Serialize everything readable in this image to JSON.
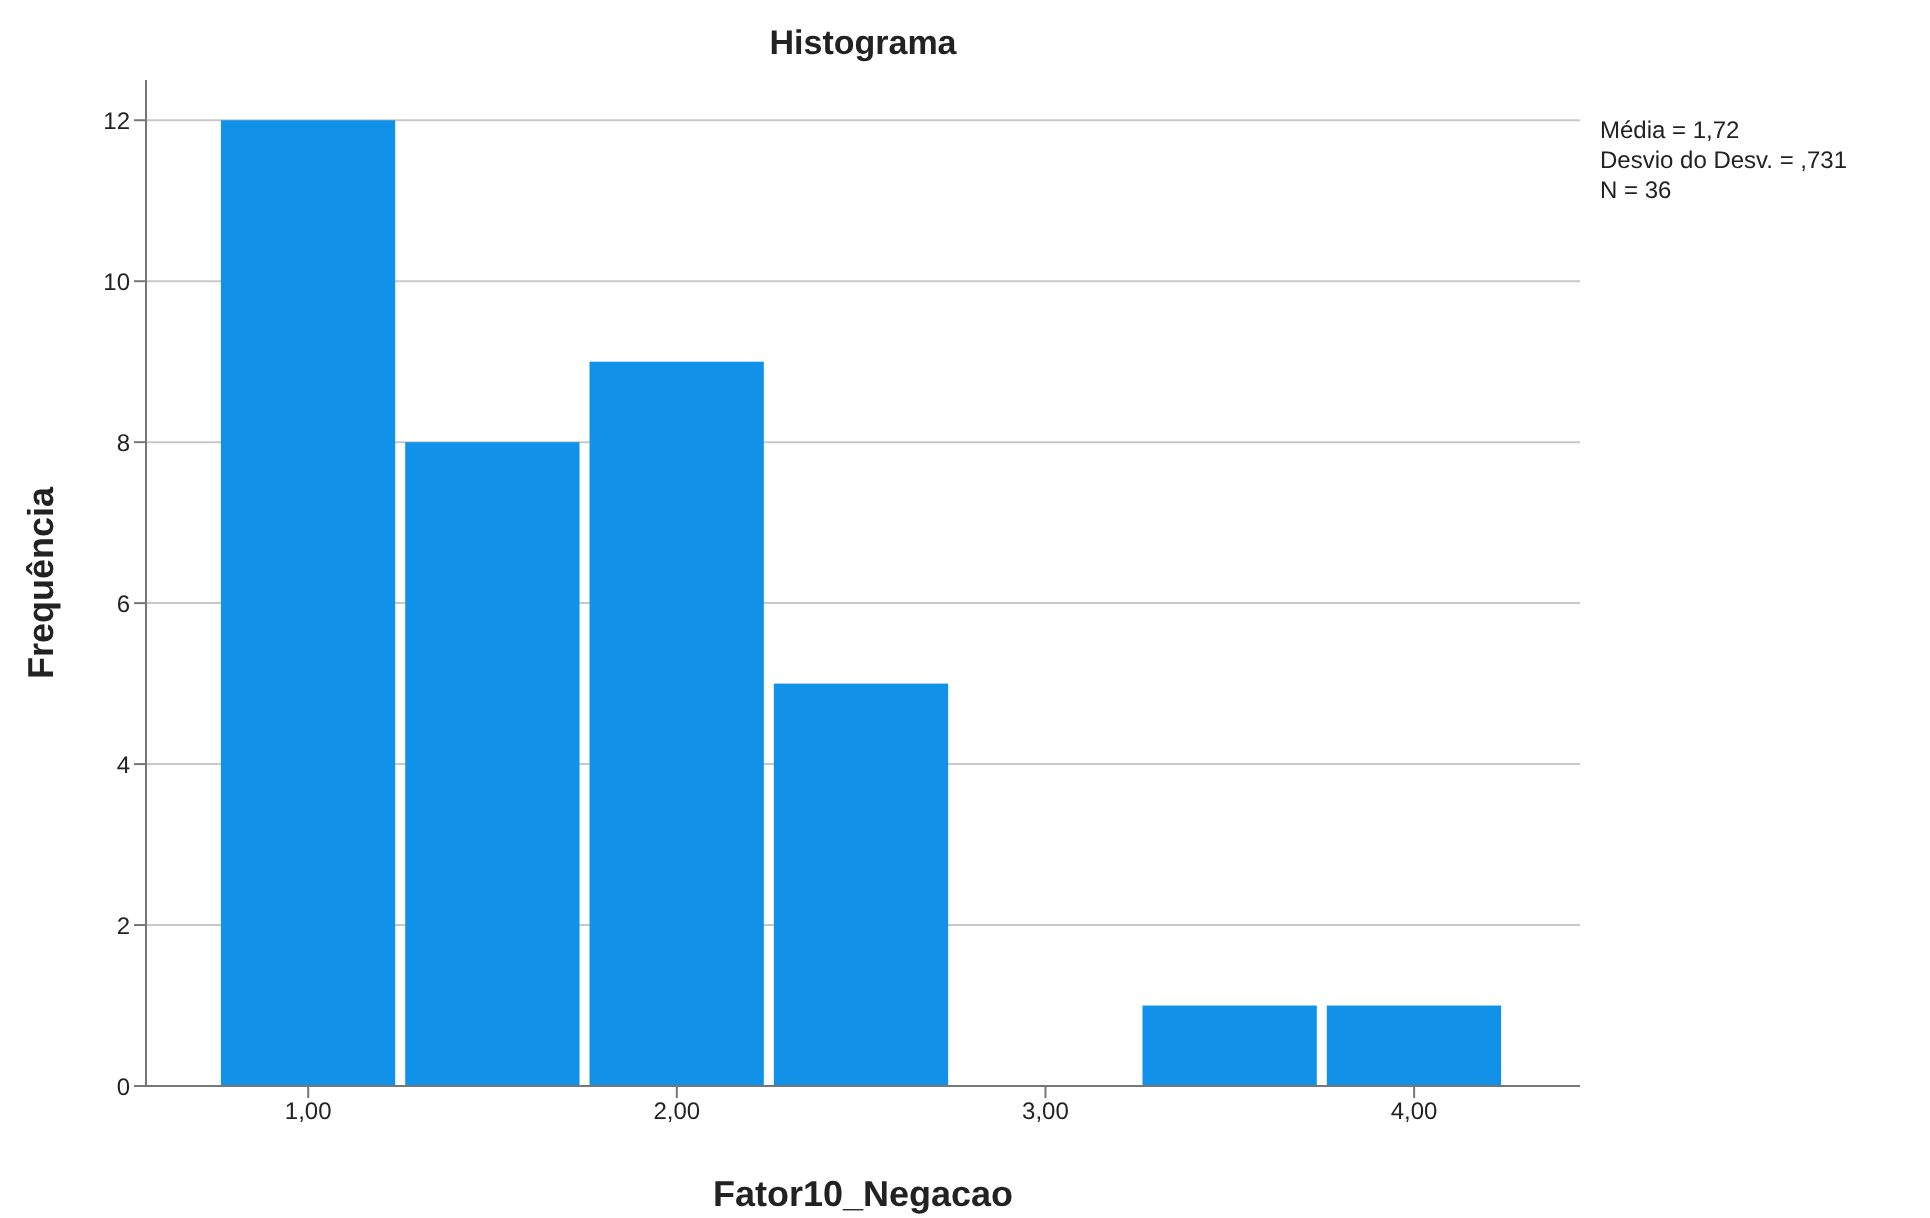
{
  "chart_data": {
    "type": "histogram",
    "title": "Histograma",
    "xlabel": "Fator10_Negacao",
    "ylabel": "Frequência",
    "bins": [
      0.75,
      1.25,
      1.75,
      2.25,
      2.75,
      3.25,
      3.75,
      4.25
    ],
    "values": [
      12,
      8,
      9,
      5,
      0,
      1,
      1
    ],
    "color": "#1192e8",
    "xlim": [
      0.56,
      4.45
    ],
    "xticks": [
      {
        "value": 1,
        "label": "1,00"
      },
      {
        "value": 2,
        "label": "2,00"
      },
      {
        "value": 3,
        "label": "3,00"
      },
      {
        "value": 4,
        "label": "4,00"
      }
    ],
    "ylim": [
      0,
      12.5
    ],
    "yticks": [
      0,
      2,
      4,
      6,
      8,
      10,
      12
    ],
    "grid": "y",
    "annotations": [
      "Média = 1,72",
      "Desvio do Desv. = ,731",
      "N = 36"
    ]
  }
}
